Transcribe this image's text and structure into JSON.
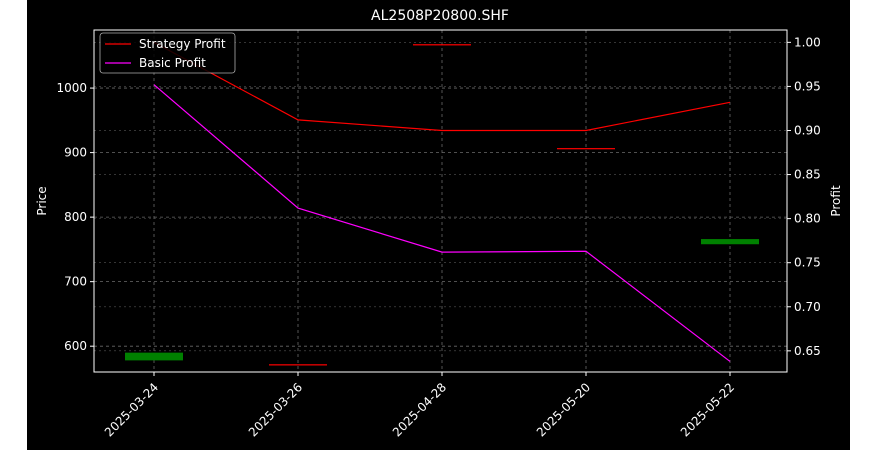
{
  "chart_data": {
    "type": "line",
    "title": "AL2508P20800.SHF",
    "xlabel": "",
    "ylabel_left": "Price",
    "ylabel_right": "Profit",
    "categories": [
      "2025-03-24",
      "2025-03-26",
      "2025-04-28",
      "2025-05-20",
      "2025-05-22"
    ],
    "ylim_left": [
      560,
      1090
    ],
    "ylim_right": [
      0.626,
      1.014
    ],
    "yticks_left": [
      600,
      700,
      800,
      900,
      1000
    ],
    "yticks_right": [
      0.65,
      0.7,
      0.75,
      0.8,
      0.85,
      0.9,
      0.95,
      1.0
    ],
    "grid": true,
    "legend_position": "top-left",
    "series": [
      {
        "name": "Strategy Profit",
        "color": "#ff0000",
        "values": [
          1.0,
          0.912,
          0.9,
          0.9,
          0.932
        ]
      },
      {
        "name": "Basic Profit",
        "color": "#ff00ff",
        "values": [
          0.952,
          0.812,
          0.762,
          0.763,
          0.638
        ]
      }
    ],
    "candles": [
      {
        "category": "2025-03-24",
        "open": 590,
        "close": 578,
        "color": "#008000"
      },
      {
        "category": "2025-03-26",
        "open": 572,
        "close": 572,
        "color": "#ff0000"
      },
      {
        "category": "2025-04-28",
        "open": 1068,
        "close": 1068,
        "color": "#ff0000"
      },
      {
        "category": "2025-05-20",
        "open": 907,
        "close": 907,
        "color": "#ff0000"
      },
      {
        "category": "2025-05-22",
        "open": 766,
        "close": 758,
        "color": "#008000"
      }
    ]
  }
}
